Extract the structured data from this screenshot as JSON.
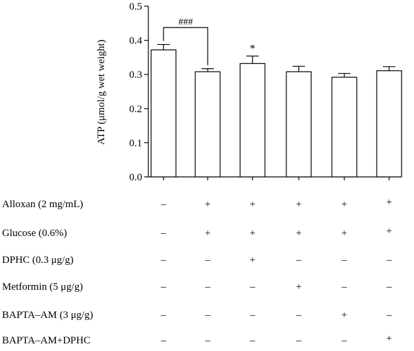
{
  "chart_data": {
    "type": "bar",
    "ylabel": "ATP (μmol/g wet weight)",
    "ylim": [
      0,
      0.5
    ],
    "yticks": [
      "0.0",
      "0.1",
      "0.2",
      "0.3",
      "0.4",
      "0.5"
    ],
    "ytick_values": [
      0,
      0.1,
      0.2,
      0.3,
      0.4,
      0.5
    ],
    "values": [
      0.372,
      0.308,
      0.332,
      0.308,
      0.292,
      0.311
    ],
    "errors": [
      0.016,
      0.009,
      0.022,
      0.016,
      0.011,
      0.012
    ],
    "significance": [
      {
        "type": "bracket",
        "from": 0,
        "to": 1,
        "label": "###"
      },
      {
        "type": "star",
        "bar": 2,
        "label": "*"
      }
    ],
    "conditions": [
      {
        "label": "Alloxan (2 mg/mL)",
        "values": [
          "–",
          "+",
          "+",
          "+",
          "+",
          "+"
        ]
      },
      {
        "label": "Glucose (0.6%)",
        "values": [
          "–",
          "+",
          "+",
          "+",
          "+",
          "+"
        ]
      },
      {
        "label": "DPHC (0.3 μg/g)",
        "values": [
          "–",
          "–",
          "+",
          "–",
          "–",
          "–"
        ]
      },
      {
        "label": "Metformin (5 μg/g)",
        "values": [
          "–",
          "–",
          "–",
          "+",
          "–",
          "–"
        ]
      },
      {
        "label": "BAPTA–AM (3 μg/g)",
        "values": [
          "–",
          "–",
          "–",
          "–",
          "+",
          "–"
        ]
      },
      {
        "label": "BAPTA–AM+DPHC",
        "values": [
          "–",
          "–",
          "–",
          "–",
          "–",
          "+"
        ]
      }
    ]
  }
}
